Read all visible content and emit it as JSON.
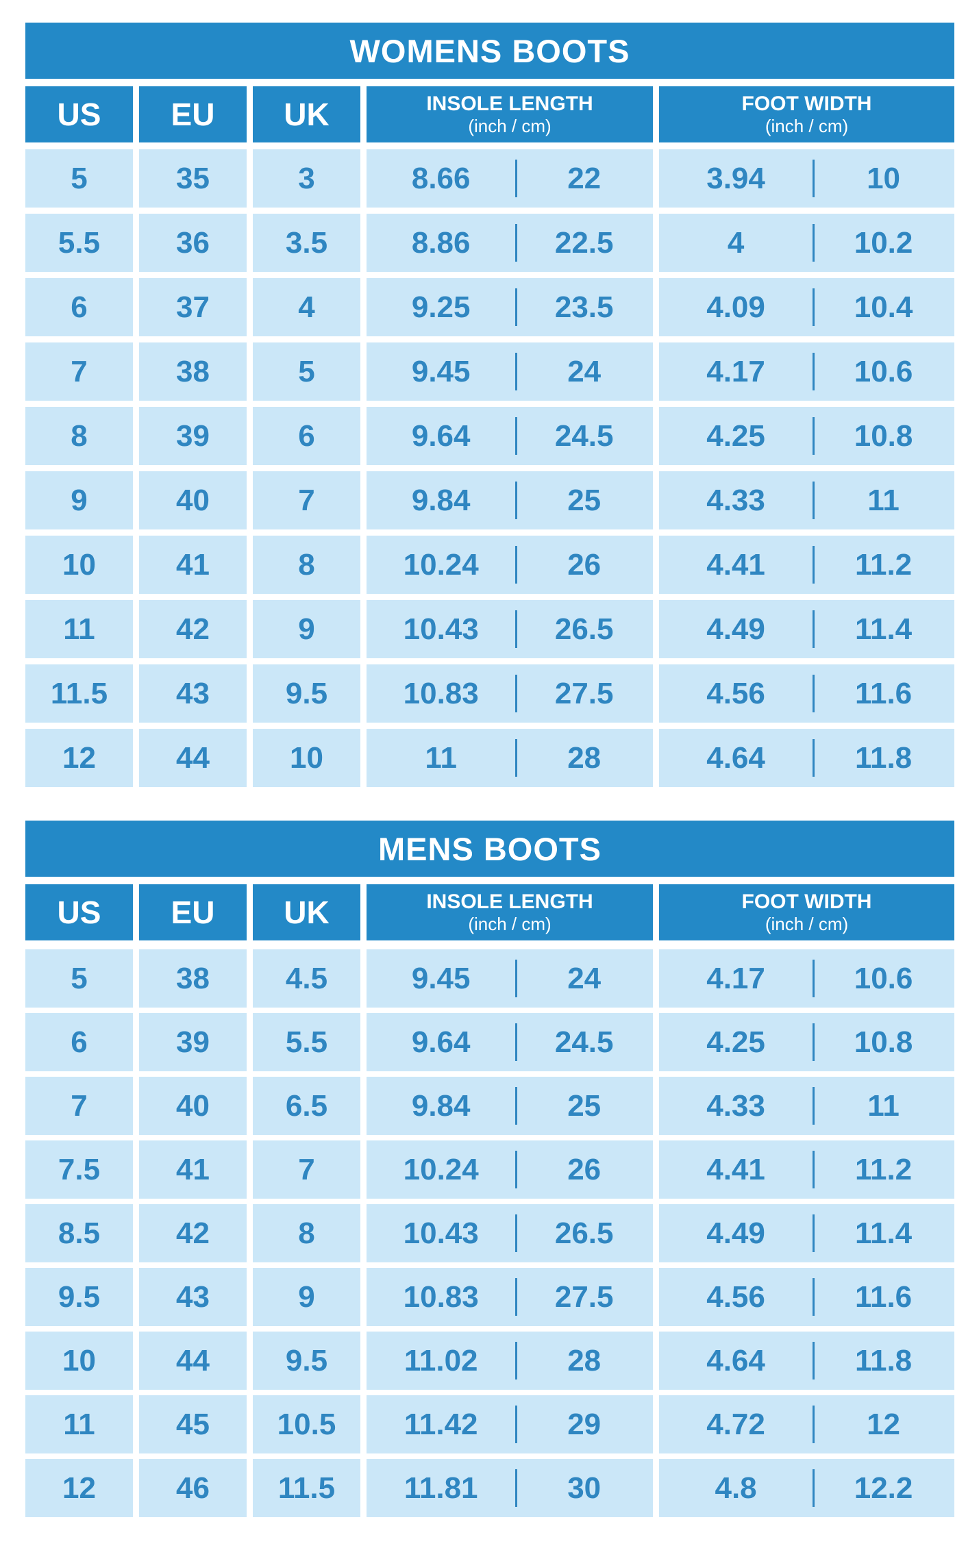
{
  "colors": {
    "header_blue": "#2389c7",
    "cell_light_blue": "#cbe7f8",
    "value_blue": "#2f86c1",
    "header_text": "#ffffff",
    "background": "#ffffff"
  },
  "chart_data": [
    {
      "type": "table",
      "title": "WOMENS BOOTS",
      "columns": [
        {
          "label": "US"
        },
        {
          "label": "EU"
        },
        {
          "label": "UK"
        },
        {
          "label": "INSOLE LENGTH",
          "sub": "(inch / cm)"
        },
        {
          "label": "FOOT WIDTH",
          "sub": "(inch / cm)"
        }
      ],
      "rows": [
        [
          "5",
          "35",
          "3",
          "8.66",
          "22",
          "3.94",
          "10"
        ],
        [
          "5.5",
          "36",
          "3.5",
          "8.86",
          "22.5",
          "4",
          "10.2"
        ],
        [
          "6",
          "37",
          "4",
          "9.25",
          "23.5",
          "4.09",
          "10.4"
        ],
        [
          "7",
          "38",
          "5",
          "9.45",
          "24",
          "4.17",
          "10.6"
        ],
        [
          "8",
          "39",
          "6",
          "9.64",
          "24.5",
          "4.25",
          "10.8"
        ],
        [
          "9",
          "40",
          "7",
          "9.84",
          "25",
          "4.33",
          "11"
        ],
        [
          "10",
          "41",
          "8",
          "10.24",
          "26",
          "4.41",
          "11.2"
        ],
        [
          "11",
          "42",
          "9",
          "10.43",
          "26.5",
          "4.49",
          "11.4"
        ],
        [
          "11.5",
          "43",
          "9.5",
          "10.83",
          "27.5",
          "4.56",
          "11.6"
        ],
        [
          "12",
          "44",
          "10",
          "11",
          "28",
          "4.64",
          "11.8"
        ]
      ]
    },
    {
      "type": "table",
      "title": "MENS BOOTS",
      "columns": [
        {
          "label": "US"
        },
        {
          "label": "EU"
        },
        {
          "label": "UK"
        },
        {
          "label": "INSOLE LENGTH",
          "sub": "(inch / cm)"
        },
        {
          "label": "FOOT WIDTH",
          "sub": "(inch / cm)"
        }
      ],
      "rows": [
        [
          "5",
          "38",
          "4.5",
          "9.45",
          "24",
          "4.17",
          "10.6"
        ],
        [
          "6",
          "39",
          "5.5",
          "9.64",
          "24.5",
          "4.25",
          "10.8"
        ],
        [
          "7",
          "40",
          "6.5",
          "9.84",
          "25",
          "4.33",
          "11"
        ],
        [
          "7.5",
          "41",
          "7",
          "10.24",
          "26",
          "4.41",
          "11.2"
        ],
        [
          "8.5",
          "42",
          "8",
          "10.43",
          "26.5",
          "4.49",
          "11.4"
        ],
        [
          "9.5",
          "43",
          "9",
          "10.83",
          "27.5",
          "4.56",
          "11.6"
        ],
        [
          "10",
          "44",
          "9.5",
          "11.02",
          "28",
          "4.64",
          "11.8"
        ],
        [
          "11",
          "45",
          "10.5",
          "11.42",
          "29",
          "4.72",
          "12"
        ],
        [
          "12",
          "46",
          "11.5",
          "11.81",
          "30",
          "4.8",
          "12.2"
        ]
      ]
    }
  ]
}
